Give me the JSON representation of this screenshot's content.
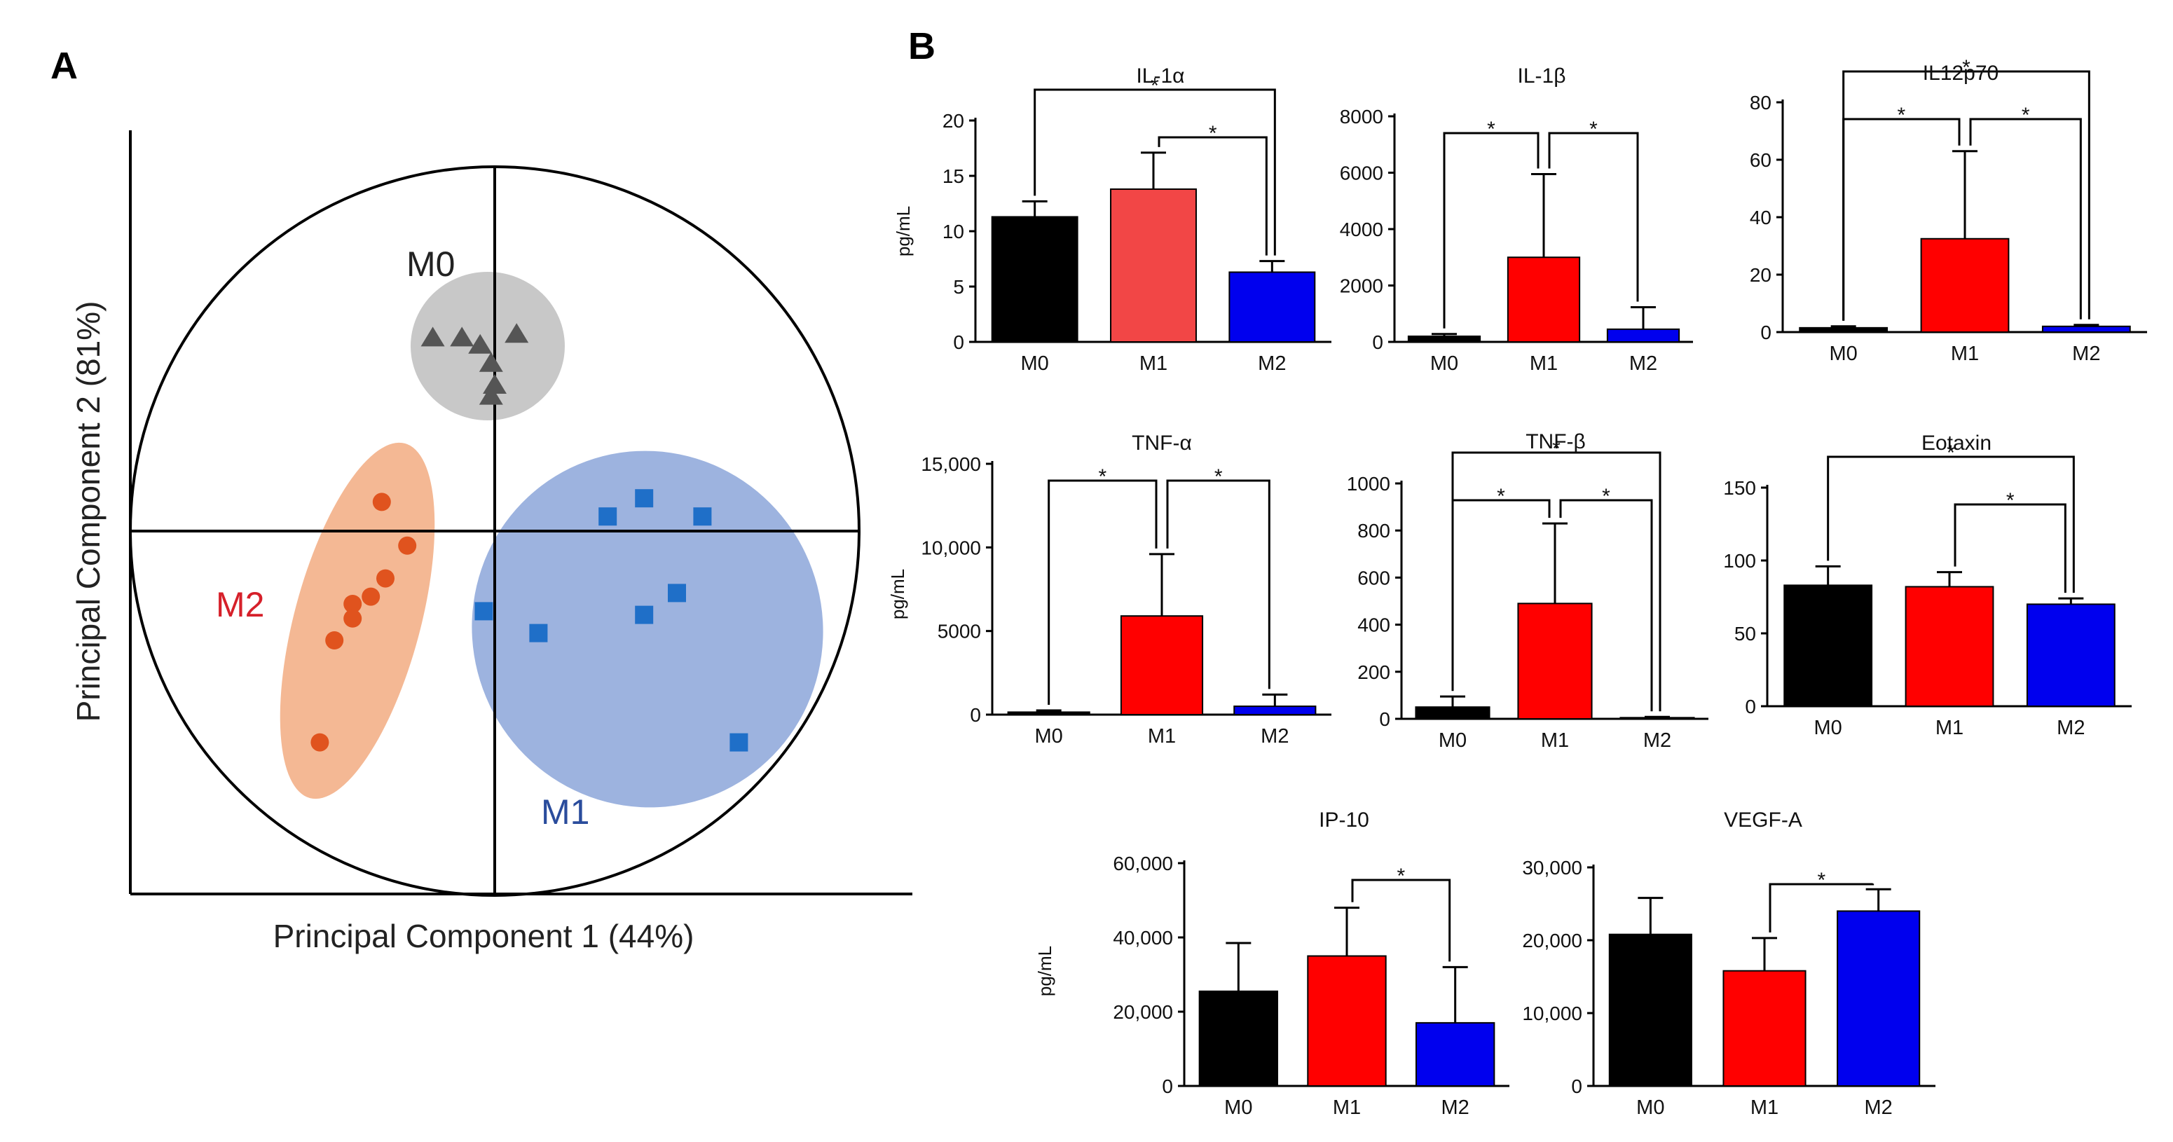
{
  "panels": {
    "a_label": "A",
    "b_label": "B"
  },
  "chart_data": [
    {
      "type": "scatter",
      "id": "pca",
      "xlabel": "Principal Component 1 (44%)",
      "ylabel": "Principal Component 2 (81%)",
      "xlim": [
        -1,
        1
      ],
      "ylim": [
        -1,
        1
      ],
      "groups": [
        {
          "name": "M0",
          "marker": "triangle",
          "color": "#555555",
          "ellipse_color": "#c8c8c8",
          "label_color": "#222222",
          "points": [
            [
              -0.17,
              0.53
            ],
            [
              -0.09,
              0.53
            ],
            [
              -0.04,
              0.51
            ],
            [
              0.06,
              0.54
            ],
            [
              -0.01,
              0.46
            ],
            [
              0.0,
              0.4
            ],
            [
              -0.01,
              0.37
            ]
          ]
        },
        {
          "name": "M1",
          "marker": "square",
          "color": "#1f6fc8",
          "ellipse_color": "#9db3df",
          "label_color": "#2a4c9c",
          "points": [
            [
              0.31,
              0.04
            ],
            [
              0.41,
              0.09
            ],
            [
              0.57,
              0.04
            ],
            [
              0.5,
              -0.17
            ],
            [
              0.41,
              -0.23
            ],
            [
              -0.03,
              -0.22
            ],
            [
              0.12,
              -0.28
            ],
            [
              0.67,
              -0.58
            ]
          ]
        },
        {
          "name": "M2",
          "marker": "circle",
          "color": "#e0531e",
          "ellipse_color": "#f4b894",
          "label_color": "#d6202a",
          "points": [
            [
              -0.31,
              0.08
            ],
            [
              -0.24,
              -0.04
            ],
            [
              -0.3,
              -0.13
            ],
            [
              -0.34,
              -0.18
            ],
            [
              -0.39,
              -0.2
            ],
            [
              -0.39,
              -0.24
            ],
            [
              -0.44,
              -0.3
            ],
            [
              -0.48,
              -0.58
            ]
          ]
        }
      ]
    },
    {
      "type": "bar",
      "id": "il1a",
      "title": "IL-1α",
      "ylabel": "pg/mL",
      "categories": [
        "M0",
        "M1",
        "M2"
      ],
      "values": [
        11.3,
        13.8,
        6.3
      ],
      "errors": [
        1.4,
        3.3,
        1.0
      ],
      "colors": [
        "#000000",
        "#f24646",
        "#0000ee"
      ],
      "ylim": [
        0,
        20
      ],
      "yticks": [
        0,
        5,
        10,
        15,
        20
      ],
      "ytick_labels": [
        "0",
        "5",
        "10",
        "15",
        "20"
      ],
      "significance": [
        {
          "from": 0,
          "to": 2,
          "level": 1,
          "mark": "*"
        },
        {
          "from": 1,
          "to": 2,
          "level": 0,
          "mark": "*"
        }
      ]
    },
    {
      "type": "bar",
      "id": "il1b",
      "title": "IL-1β",
      "ylabel": "",
      "categories": [
        "M0",
        "M1",
        "M2"
      ],
      "values": [
        200,
        3000,
        450
      ],
      "errors": [
        80,
        2950,
        780
      ],
      "colors": [
        "#000000",
        "#ff0000",
        "#0000ee"
      ],
      "ylim": [
        0,
        8000
      ],
      "yticks": [
        0,
        2000,
        4000,
        6000,
        8000
      ],
      "ytick_labels": [
        "0",
        "2000",
        "4000",
        "6000",
        "8000"
      ],
      "significance": [
        {
          "from": 0,
          "to": 1,
          "level": 0,
          "mark": "*"
        },
        {
          "from": 1,
          "to": 2,
          "level": 0,
          "mark": "*"
        }
      ]
    },
    {
      "type": "bar",
      "id": "il12p70",
      "title": "IL12p70",
      "ylabel": "",
      "categories": [
        "M0",
        "M1",
        "M2"
      ],
      "values": [
        1.5,
        32.5,
        2.0
      ],
      "errors": [
        0.5,
        30.5,
        0.5
      ],
      "colors": [
        "#000000",
        "#ff0000",
        "#0000ee"
      ],
      "ylim": [
        0,
        80
      ],
      "yticks": [
        0,
        20,
        40,
        60,
        80
      ],
      "ytick_labels": [
        "0",
        "20",
        "40",
        "60",
        "80"
      ],
      "significance": [
        {
          "from": 0,
          "to": 2,
          "level": 1,
          "mark": "*"
        },
        {
          "from": 0,
          "to": 1,
          "level": 0,
          "mark": "*"
        },
        {
          "from": 1,
          "to": 2,
          "level": 0,
          "mark": "*"
        }
      ]
    },
    {
      "type": "bar",
      "id": "tnfa",
      "title": "TNF-α",
      "ylabel": "pg/mL",
      "categories": [
        "M0",
        "M1",
        "M2"
      ],
      "values": [
        150,
        5900,
        500
      ],
      "errors": [
        100,
        3700,
        700
      ],
      "colors": [
        "#000000",
        "#ff0000",
        "#0000ee"
      ],
      "ylim": [
        0,
        15000
      ],
      "yticks": [
        0,
        5000,
        10000,
        15000
      ],
      "ytick_labels": [
        "0",
        "5000",
        "10,000",
        "15,000"
      ],
      "significance": [
        {
          "from": 0,
          "to": 1,
          "level": 0,
          "mark": "*"
        },
        {
          "from": 1,
          "to": 2,
          "level": 0,
          "mark": "*"
        }
      ]
    },
    {
      "type": "bar",
      "id": "tnfb",
      "title": "TNF-β",
      "ylabel": "",
      "categories": [
        "M0",
        "M1",
        "M2"
      ],
      "values": [
        50,
        490,
        5
      ],
      "errors": [
        45,
        340,
        3
      ],
      "colors": [
        "#000000",
        "#ff0000",
        "#0000ee"
      ],
      "ylim": [
        0,
        1000
      ],
      "yticks": [
        0,
        200,
        400,
        600,
        800,
        1000
      ],
      "ytick_labels": [
        "0",
        "200",
        "400",
        "600",
        "800",
        "1000"
      ],
      "significance": [
        {
          "from": 0,
          "to": 2,
          "level": 1,
          "mark": "*"
        },
        {
          "from": 0,
          "to": 1,
          "level": 0,
          "mark": "*"
        },
        {
          "from": 1,
          "to": 2,
          "level": 0,
          "mark": "*"
        }
      ]
    },
    {
      "type": "bar",
      "id": "eotaxin",
      "title": "Eotaxin",
      "ylabel": "",
      "categories": [
        "M0",
        "M1",
        "M2"
      ],
      "values": [
        83,
        82,
        70
      ],
      "errors": [
        13,
        10,
        4
      ],
      "colors": [
        "#000000",
        "#ff0000",
        "#0000ee"
      ],
      "ylim": [
        0,
        150
      ],
      "yticks": [
        0,
        50,
        100,
        150
      ],
      "ytick_labels": [
        "0",
        "50",
        "100",
        "150"
      ],
      "significance": [
        {
          "from": 0,
          "to": 2,
          "level": 1,
          "mark": "*"
        },
        {
          "from": 1,
          "to": 2,
          "level": 0,
          "mark": "*"
        }
      ]
    },
    {
      "type": "bar",
      "id": "ip10",
      "title": "IP-10",
      "ylabel": "pg/mL",
      "categories": [
        "M0",
        "M1",
        "M2"
      ],
      "values": [
        25500,
        35000,
        17000
      ],
      "errors": [
        13000,
        13000,
        15000
      ],
      "colors": [
        "#000000",
        "#ff0000",
        "#0000ee"
      ],
      "ylim": [
        0,
        60000
      ],
      "yticks": [
        0,
        20000,
        40000,
        60000
      ],
      "ytick_labels": [
        "0",
        "20,000",
        "40,000",
        "60,000"
      ],
      "significance": [
        {
          "from": 1,
          "to": 2,
          "level": 0,
          "mark": "*"
        }
      ]
    },
    {
      "type": "bar",
      "id": "vegfa",
      "title": "VEGF-A",
      "ylabel": "",
      "categories": [
        "M0",
        "M1",
        "M2"
      ],
      "values": [
        20800,
        15800,
        24000
      ],
      "errors": [
        5000,
        4500,
        3000
      ],
      "colors": [
        "#000000",
        "#ff0000",
        "#0000ee"
      ],
      "ylim": [
        0,
        30000
      ],
      "yticks": [
        0,
        10000,
        20000,
        30000
      ],
      "ytick_labels": [
        "0",
        "10,000",
        "20,000",
        "30,000"
      ],
      "significance": [
        {
          "from": 1,
          "to": 2,
          "level": 0,
          "mark": "*"
        }
      ]
    }
  ]
}
